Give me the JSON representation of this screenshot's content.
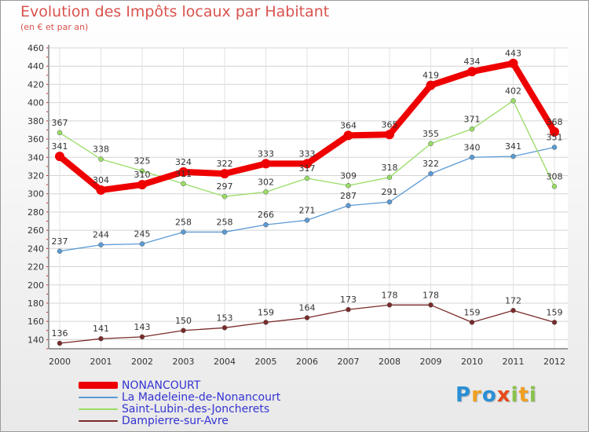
{
  "chart_data": {
    "type": "line",
    "title": "Evolution des Impôts locaux par Habitant",
    "subtitle": "(en € et par an)",
    "x": [
      "2000",
      "2001",
      "2002",
      "2003",
      "2004",
      "2005",
      "2006",
      "2007",
      "2008",
      "2009",
      "2010",
      "2011",
      "2012"
    ],
    "ylim": [
      130,
      460
    ],
    "yticks": [
      140,
      160,
      180,
      200,
      220,
      240,
      260,
      280,
      300,
      320,
      340,
      360,
      380,
      400,
      420,
      440,
      460
    ],
    "grid": true,
    "legend_position": "bottom-left",
    "series": [
      {
        "name": "NONANCOURT",
        "color": "#ee0000",
        "values": [
          341,
          304,
          310,
          324,
          322,
          333,
          333,
          364,
          365,
          419,
          434,
          443,
          368
        ]
      },
      {
        "name": "La Madeleine-de-Nonancourt",
        "color": "#5b9bd5",
        "values": [
          237,
          244,
          245,
          258,
          258,
          266,
          271,
          287,
          291,
          322,
          340,
          341,
          351
        ]
      },
      {
        "name": "Saint-Lubin-des-Joncherets",
        "color": "#99dd66",
        "values": [
          367,
          338,
          325,
          311,
          297,
          302,
          317,
          309,
          318,
          355,
          371,
          402,
          308
        ]
      },
      {
        "name": "Dampierre-sur-Avre",
        "color": "#7a2a2a",
        "values": [
          136,
          141,
          143,
          150,
          153,
          159,
          164,
          173,
          178,
          178,
          159,
          172,
          159
        ]
      }
    ]
  },
  "logo": {
    "text": "Proxiti",
    "letters": [
      "P",
      "r",
      "o",
      "x",
      "i",
      "t",
      "i"
    ],
    "colors": [
      "#2a8fd6",
      "#f0a020",
      "#2a8fd6",
      "#e84a1a",
      "#88c24a",
      "#f0a020",
      "#88c24a"
    ]
  }
}
